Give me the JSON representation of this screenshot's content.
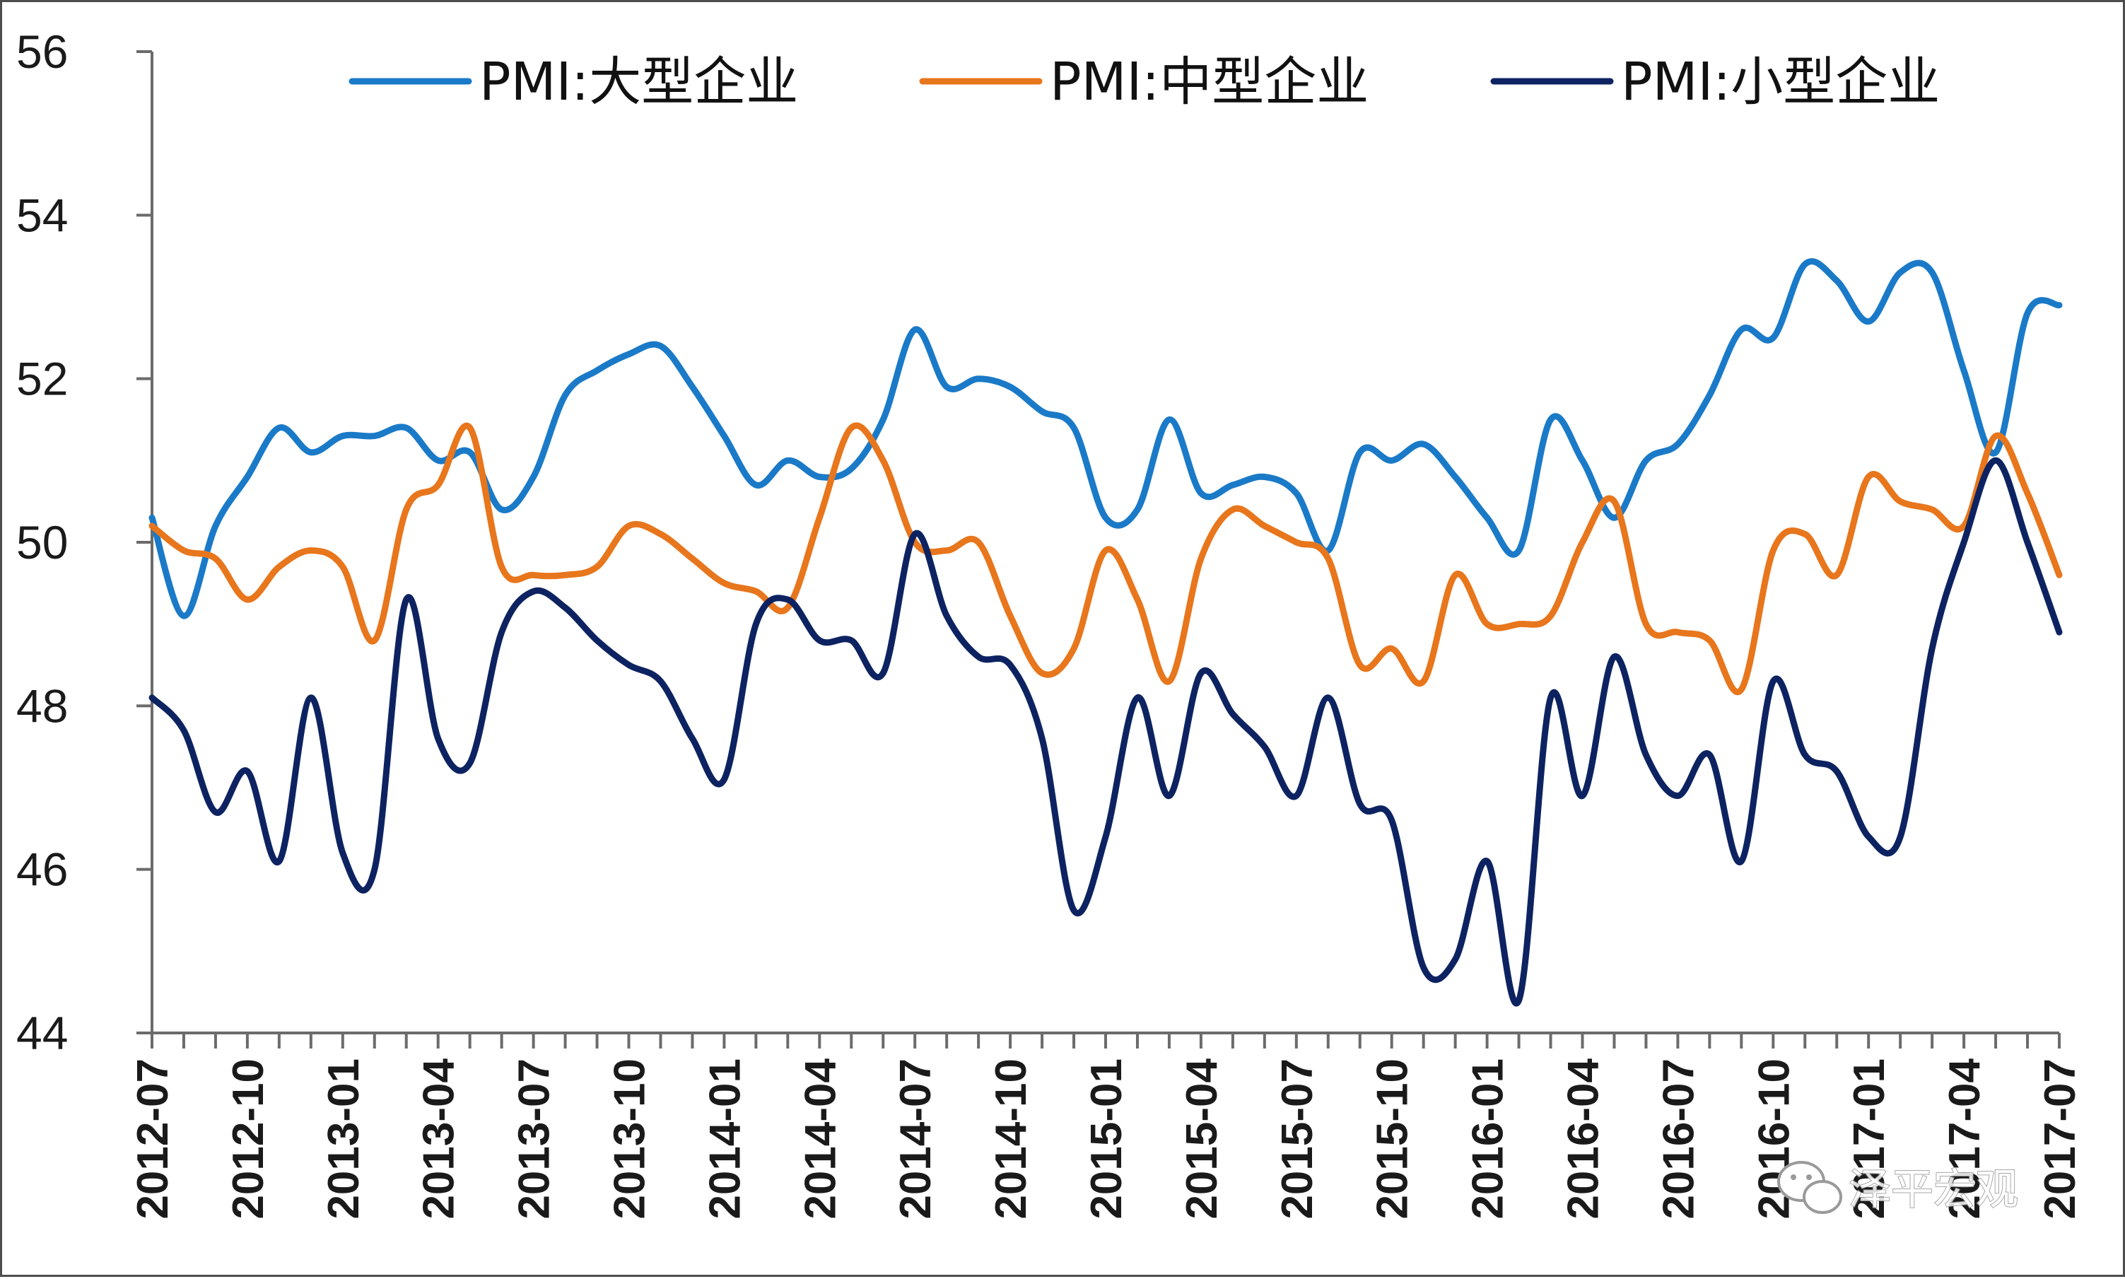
{
  "chart_data": {
    "type": "line",
    "title": "",
    "xlabel": "",
    "ylabel": "",
    "ylim": [
      44,
      56
    ],
    "yticks": [
      44,
      46,
      48,
      50,
      52,
      54,
      56
    ],
    "grid": false,
    "legend_position": "top",
    "tick_labels_x": [
      "2012-07",
      "2012-10",
      "2013-01",
      "2013-04",
      "2013-07",
      "2013-10",
      "2014-01",
      "2014-04",
      "2014-07",
      "2014-10",
      "2015-01",
      "2015-04",
      "2015-07",
      "2015-10",
      "2016-01",
      "2016-04",
      "2016-07",
      "2016-10",
      "2017-01",
      "2017-04",
      "2017-07"
    ],
    "x": [
      "2012-07",
      "2012-08",
      "2012-09",
      "2012-10",
      "2012-11",
      "2012-12",
      "2013-01",
      "2013-02",
      "2013-03",
      "2013-04",
      "2013-05",
      "2013-06",
      "2013-07",
      "2013-08",
      "2013-09",
      "2013-10",
      "2013-11",
      "2013-12",
      "2014-01",
      "2014-02",
      "2014-03",
      "2014-04",
      "2014-05",
      "2014-06",
      "2014-07",
      "2014-08",
      "2014-09",
      "2014-10",
      "2014-11",
      "2014-12",
      "2015-01",
      "2015-02",
      "2015-03",
      "2015-04",
      "2015-05",
      "2015-06",
      "2015-07",
      "2015-08",
      "2015-09",
      "2015-10",
      "2015-11",
      "2015-12",
      "2016-01",
      "2016-02",
      "2016-03",
      "2016-04",
      "2016-05",
      "2016-06",
      "2016-07",
      "2016-08",
      "2016-09",
      "2016-10",
      "2016-11",
      "2016-12",
      "2017-01",
      "2017-02",
      "2017-03",
      "2017-04",
      "2017-05",
      "2017-06",
      "2017-07"
    ],
    "series": [
      {
        "name": "PMI:大型企业",
        "color": "#1a7ac8",
        "values": [
          50.3,
          49.1,
          50.2,
          50.8,
          51.4,
          51.1,
          51.3,
          51.3,
          51.4,
          51.0,
          51.1,
          50.4,
          50.8,
          51.8,
          52.1,
          52.3,
          52.4,
          51.9,
          51.3,
          50.7,
          51.0,
          50.8,
          50.9,
          51.5,
          52.6,
          51.9,
          52.0,
          51.9,
          51.6,
          51.4,
          50.3,
          50.4,
          51.5,
          50.6,
          50.7,
          50.8,
          50.6,
          49.9,
          51.1,
          51.0,
          51.2,
          50.8,
          50.3,
          49.9,
          51.5,
          51.0,
          50.3,
          51.0,
          51.2,
          51.8,
          52.6,
          52.5,
          53.4,
          53.2,
          52.7,
          53.3,
          53.3,
          52.1,
          51.1,
          52.8,
          52.9
        ]
      },
      {
        "name": "PMI:中型企业",
        "color": "#e8761c",
        "values": [
          50.2,
          49.9,
          49.8,
          49.3,
          49.7,
          49.9,
          49.7,
          48.8,
          50.4,
          50.7,
          51.4,
          49.7,
          49.6,
          49.6,
          49.7,
          50.2,
          50.1,
          49.8,
          49.5,
          49.4,
          49.2,
          50.3,
          51.4,
          51.0,
          50.0,
          49.9,
          50.0,
          49.1,
          48.4,
          48.7,
          49.9,
          49.3,
          48.3,
          49.8,
          50.4,
          50.2,
          50.0,
          49.8,
          48.5,
          48.7,
          48.3,
          49.6,
          49.0,
          49.0,
          49.1,
          50.0,
          50.5,
          49.0,
          48.9,
          48.8,
          48.2,
          49.9,
          50.1,
          49.6,
          50.8,
          50.5,
          50.4,
          50.2,
          51.3,
          50.6,
          49.6
        ]
      },
      {
        "name": "PMI:小型企业",
        "color": "#0d2361",
        "values": [
          48.1,
          47.7,
          46.7,
          47.2,
          46.1,
          48.1,
          46.2,
          46.0,
          49.3,
          47.6,
          47.3,
          48.9,
          49.4,
          49.2,
          48.8,
          48.5,
          48.3,
          47.6,
          47.1,
          49.0,
          49.3,
          48.8,
          48.8,
          48.4,
          50.1,
          49.1,
          48.6,
          48.5,
          47.6,
          45.5,
          46.4,
          48.1,
          46.9,
          48.4,
          47.9,
          47.5,
          46.9,
          48.1,
          46.8,
          46.6,
          44.8,
          44.9,
          46.1,
          44.4,
          48.1,
          46.9,
          48.6,
          47.4,
          46.9,
          47.4,
          46.1,
          48.3,
          47.4,
          47.2,
          46.4,
          46.4,
          48.7,
          50.0,
          51.0,
          50.0,
          48.9
        ]
      }
    ]
  },
  "watermark": {
    "text": "泽平宏观",
    "icon": "wechat-icon"
  }
}
